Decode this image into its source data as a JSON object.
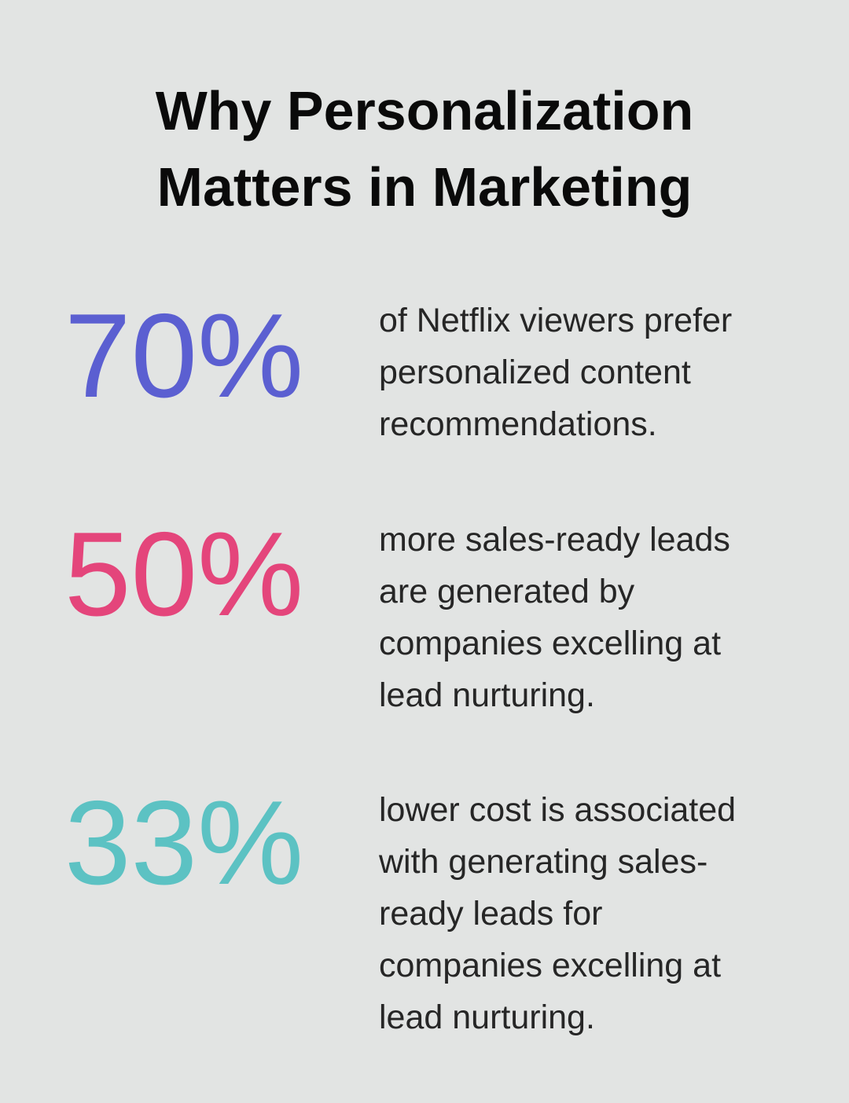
{
  "header": {
    "title_lines": [
      "Why Personalization",
      "Matters in Marketing"
    ]
  },
  "stats": [
    {
      "value": "70%",
      "color": "#5b5fd1",
      "lines": [
        "of Netflix viewers prefer",
        "personalized content",
        "recommendations."
      ]
    },
    {
      "value": "50%",
      "color": "#e4457b",
      "lines": [
        "more sales-ready leads",
        "are generated by",
        "companies excelling at",
        "lead nurturing."
      ]
    },
    {
      "value": "33%",
      "color": "#5cc2c3",
      "lines": [
        "lower cost is associated",
        "with generating sales-",
        "ready leads for",
        "companies excelling at",
        "lead nurturing."
      ]
    }
  ]
}
